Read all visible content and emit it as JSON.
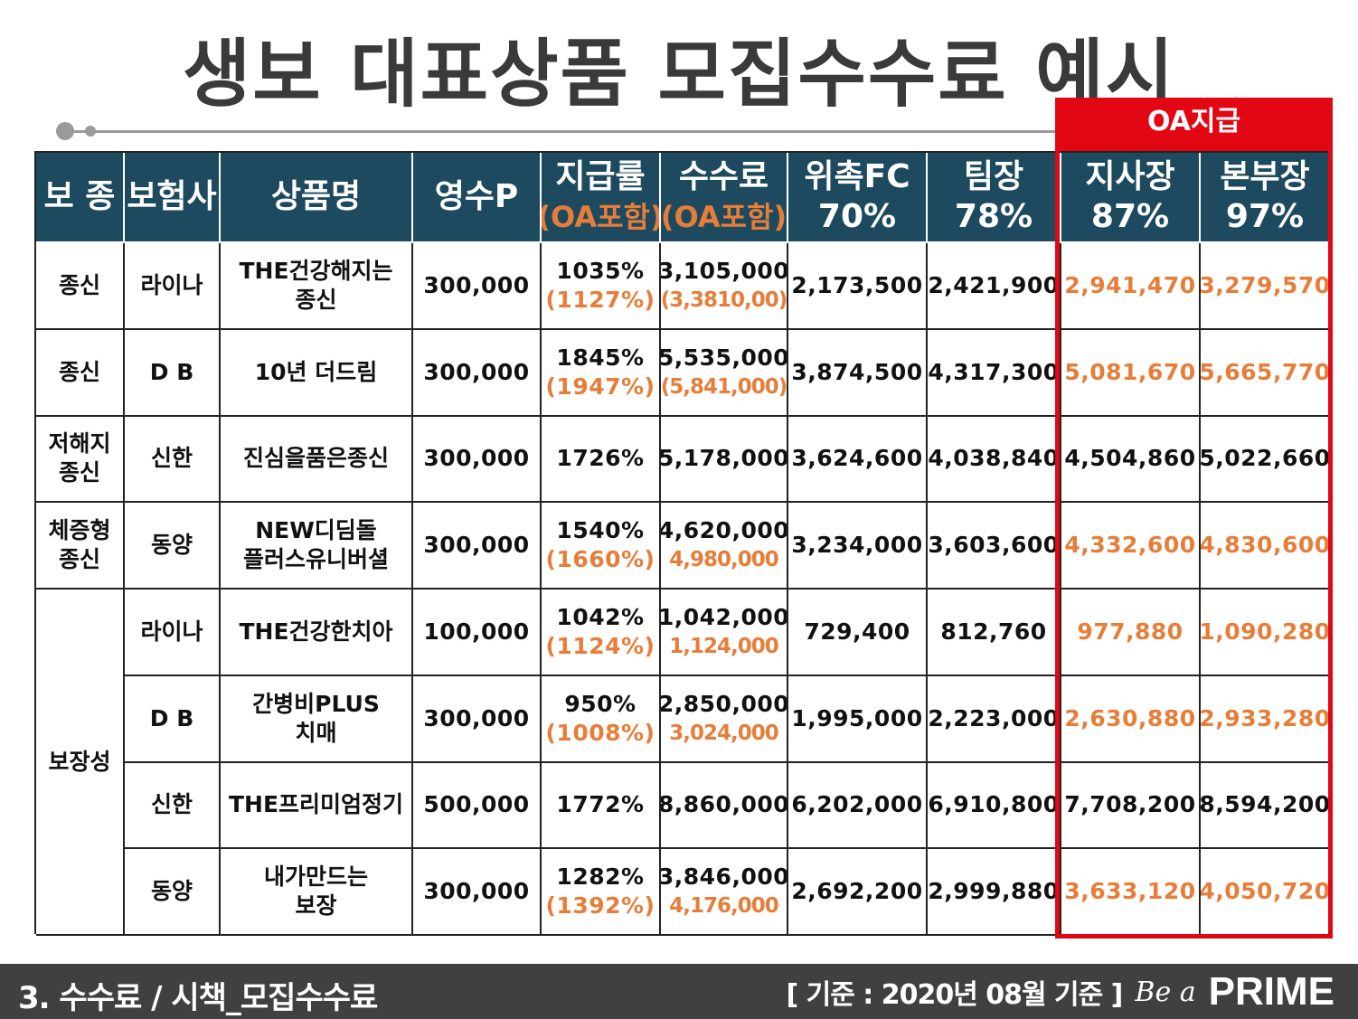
{
  "title": "생보 대표상품 모집수수료 예시",
  "oa_label": "OA지급",
  "header": {
    "type": "보 종",
    "insurer": "보험사",
    "product": "상품명",
    "premium": "영수P",
    "rate": "지급률",
    "rate_sub": "(OA포함)",
    "fee": "수수료",
    "fee_sub": "(OA포함)",
    "fc": "위촉FC",
    "fc_pct": "70%",
    "team": "팀장",
    "team_pct": "78%",
    "branch": "지사장",
    "branch_pct": "87%",
    "hq": "본부장",
    "hq_pct": "97%"
  },
  "rows": [
    {
      "type": [
        "종신"
      ],
      "insurer": "라이나",
      "product": [
        "THE건강해지는",
        "종신"
      ],
      "premium": "300,000",
      "rate": "1035%",
      "rate_oa": "(1127%)",
      "fee": "3,105,000",
      "fee_oa": "(3,3810,00)",
      "fc": "2,173,500",
      "team": "2,421,900",
      "branch": "2,941,470",
      "hq": "3,279,570",
      "highlight": true
    },
    {
      "type": [
        "종신"
      ],
      "insurer": "D  B",
      "product": [
        "10년 더드림"
      ],
      "premium": "300,000",
      "rate": "1845%",
      "rate_oa": "(1947%)",
      "fee": "5,535,000",
      "fee_oa": "(5,841,000)",
      "fc": "3,874,500",
      "team": "4,317,300",
      "branch": "5,081,670",
      "hq": "5,665,770",
      "highlight": true
    },
    {
      "type": [
        "저해지",
        "종신"
      ],
      "insurer": "신한",
      "product": [
        "진심을품은종신"
      ],
      "premium": "300,000",
      "rate": "1726%",
      "rate_oa": "",
      "fee": "5,178,000",
      "fee_oa": "",
      "fc": "3,624,600",
      "team": "4,038,840",
      "branch": "4,504,860",
      "hq": "5,022,660",
      "highlight": false
    },
    {
      "type": [
        "체증형",
        "종신"
      ],
      "insurer": "동양",
      "product": [
        "NEW디딤돌",
        "플러스유니버셜"
      ],
      "premium": "300,000",
      "rate": "1540%",
      "rate_oa": "(1660%)",
      "fee": "4,620,000",
      "fee_oa": "4,980,000",
      "fc": "3,234,000",
      "team": "3,603,600",
      "branch": "4,332,600",
      "hq": "4,830,600",
      "highlight": true
    },
    {
      "insurer": "라이나",
      "product": [
        "THE건강한치아"
      ],
      "premium": "100,000",
      "rate": "1042%",
      "rate_oa": "(1124%)",
      "fee": "1,042,000",
      "fee_oa": "1,124,000",
      "fc": "729,400",
      "team": "812,760",
      "branch": "977,880",
      "hq": "1,090,280",
      "highlight": true
    },
    {
      "insurer": "D B",
      "product": [
        "간병비PLUS",
        "치매"
      ],
      "premium": "300,000",
      "rate": "950%",
      "rate_oa": "(1008%)",
      "fee": "2,850,000",
      "fee_oa": "3,024,000",
      "fc": "1,995,000",
      "team": "2,223,000",
      "branch": "2,630,880",
      "hq": "2,933,280",
      "highlight": true
    },
    {
      "insurer": "신한",
      "product": [
        "THE프리미엄정기"
      ],
      "premium": "500,000",
      "rate": "1772%",
      "rate_oa": "",
      "fee": "8,860,000",
      "fee_oa": "",
      "fc": "6,202,000",
      "team": "6,910,800",
      "branch": "7,708,200",
      "hq": "8,594,200",
      "highlight": false
    },
    {
      "insurer": "동양",
      "product": [
        "내가만드는",
        "보장"
      ],
      "premium": "300,000",
      "rate": "1282%",
      "rate_oa": "(1392%)",
      "fee": "3,846,000",
      "fee_oa": "4,176,000",
      "fc": "2,692,200",
      "team": "2,999,880",
      "branch": "3,633,120",
      "hq": "4,050,720",
      "highlight": true
    }
  ],
  "merged_type": "보장성",
  "footer": {
    "left": "3. 수수료 / 시책_모집수수료",
    "note": "[ 기준 : 2020년 08월 기준 ]",
    "logo_script": "Be a",
    "logo_main": "PRIME"
  }
}
